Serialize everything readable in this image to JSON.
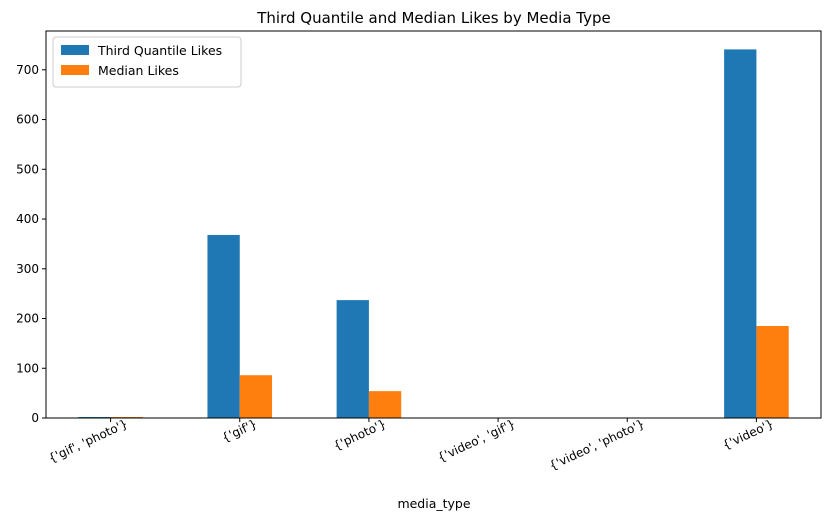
{
  "chart_data": {
    "type": "bar",
    "title": "Third Quantile and Median Likes by Media Type",
    "xlabel": "media_type",
    "ylabel": "",
    "categories": [
      "{'gif', 'photo'}",
      "{'gif'}",
      "{'photo'}",
      "{'video', 'gif'}",
      "{'video', 'photo'}",
      "{'video'}"
    ],
    "series": [
      {
        "name": "Third Quantile Likes",
        "color": "#1f77b4",
        "values": [
          2,
          368,
          237,
          0,
          0,
          741
        ]
      },
      {
        "name": "Median Likes",
        "color": "#ff7f0e",
        "values": [
          2,
          86,
          54,
          0,
          0,
          185
        ]
      }
    ],
    "ylim": [
      0,
      778
    ],
    "yticks": [
      0,
      100,
      200,
      300,
      400,
      500,
      600,
      700
    ],
    "xtick_rotation": 25,
    "legend": "upper-left",
    "grid": false
  }
}
